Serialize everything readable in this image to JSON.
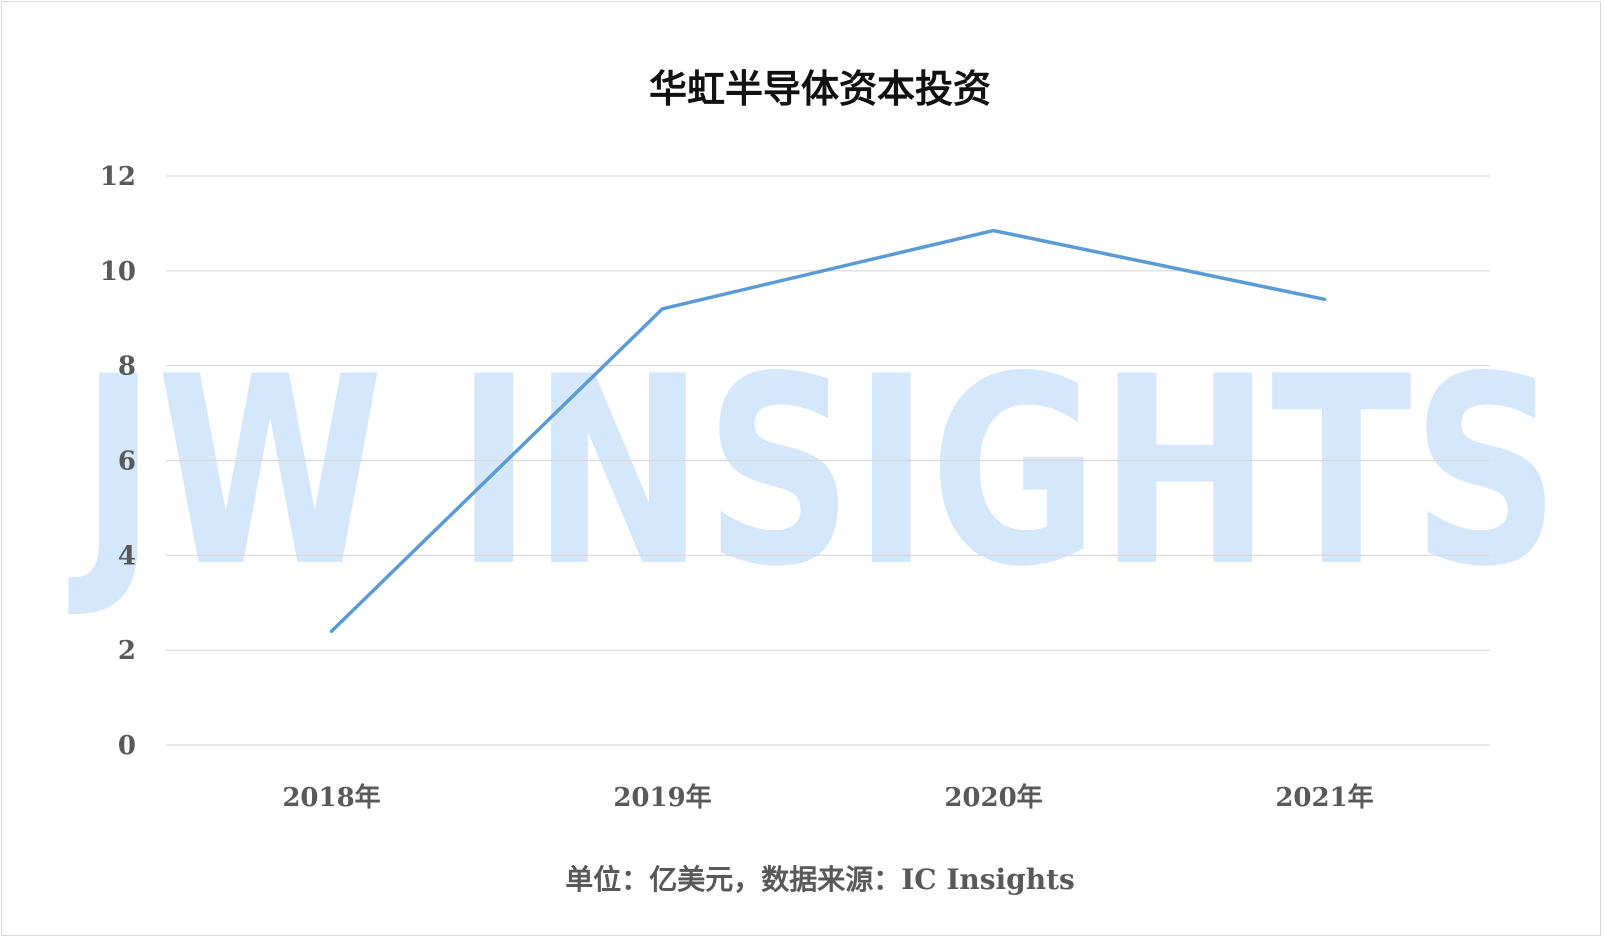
{
  "chart_data": {
    "type": "line",
    "title": "华虹半导体资本投资",
    "categories": [
      "2018年",
      "2019年",
      "2020年",
      "2021年"
    ],
    "series": [
      {
        "values": [
          2.4,
          9.2,
          10.85,
          9.4
        ],
        "color": "#5b9bd5"
      }
    ],
    "ylim": [
      0,
      12
    ],
    "yticks": [
      0,
      2,
      4,
      6,
      8,
      10,
      12
    ],
    "grid": true,
    "legend": "none",
    "footnote": "单位：亿美元，数据来源：IC Insights"
  },
  "watermark": {
    "text": "JW INSIGHTS",
    "color": "#d4e7fb"
  }
}
